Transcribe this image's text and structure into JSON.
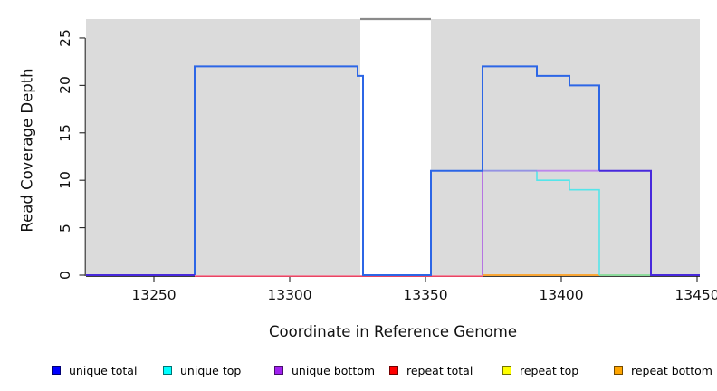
{
  "axes": {
    "x_label": "Coordinate in Reference Genome",
    "y_label": "Read Coverage Depth"
  },
  "chart_data": {
    "type": "line",
    "step": true,
    "title": "",
    "xlabel": "Coordinate in Reference Genome",
    "ylabel": "Read Coverage Depth",
    "x_domain": [
      13225,
      13451
    ],
    "y_domain": [
      0,
      27
    ],
    "x_ticks": [
      13250,
      13300,
      13350,
      13400,
      13450
    ],
    "y_ticks": [
      0,
      5,
      10,
      15,
      20,
      25
    ],
    "grid": false,
    "panel_bg": "#DBDBDB",
    "masked_region": {
      "start": 13326,
      "end": 13352,
      "fill": "#FFFFFF",
      "coverage_value": 27,
      "line_color": "#8A8A8A"
    },
    "series": [
      {
        "name": "unique total",
        "color": "#0000FF",
        "points": [
          [
            13225,
            0
          ],
          [
            13265,
            0
          ],
          [
            13265,
            22
          ],
          [
            13325,
            22
          ],
          [
            13325,
            21
          ],
          [
            13327,
            21
          ],
          [
            13327,
            0
          ],
          [
            13352,
            0
          ],
          [
            13352,
            11
          ],
          [
            13371,
            11
          ],
          [
            13371,
            22
          ],
          [
            13391,
            22
          ],
          [
            13391,
            21
          ],
          [
            13403,
            21
          ],
          [
            13403,
            20
          ],
          [
            13414,
            20
          ],
          [
            13414,
            11
          ],
          [
            13433,
            11
          ],
          [
            13433,
            0
          ],
          [
            13451,
            0
          ]
        ]
      },
      {
        "name": "unique top",
        "color": "#00FFFF",
        "points": [
          [
            13371,
            11
          ],
          [
            13391,
            11
          ],
          [
            13391,
            10
          ],
          [
            13403,
            10
          ],
          [
            13403,
            9
          ],
          [
            13414,
            9
          ],
          [
            13414,
            0
          ],
          [
            13433,
            0
          ]
        ]
      },
      {
        "name": "unique bottom",
        "color": "#A020F0",
        "points": [
          [
            13371,
            0
          ],
          [
            13371,
            11
          ],
          [
            13433,
            11
          ],
          [
            13433,
            0
          ],
          [
            13451,
            0
          ]
        ]
      },
      {
        "name": "repeat total",
        "color": "#FF0000",
        "points": [
          [
            13265,
            0
          ],
          [
            13371,
            0
          ]
        ]
      },
      {
        "name": "repeat top",
        "color": "#FFFF00",
        "points": [
          [
            13414,
            0
          ],
          [
            13433,
            0
          ]
        ]
      },
      {
        "name": "repeat bottom",
        "color": "#FFA500",
        "points": [
          [
            13371,
            0
          ],
          [
            13414,
            0
          ]
        ]
      }
    ],
    "render_segments": [
      {
        "name": "repeat-total-baseline",
        "color": "#E84563",
        "width": 1.6,
        "dy": 1.2,
        "points": [
          [
            13265,
            0
          ],
          [
            13371,
            0
          ]
        ]
      },
      {
        "name": "repeat-bottom-baseline",
        "color": "#FFA021",
        "width": 1.8,
        "points": [
          [
            13371,
            0
          ],
          [
            13414,
            0
          ]
        ]
      },
      {
        "name": "top-blend-baseline",
        "color": "#84DC96",
        "width": 1.8,
        "points": [
          [
            13414,
            0
          ],
          [
            13433,
            0
          ]
        ]
      },
      {
        "name": "unique-top-steps",
        "color": "#55E5EA",
        "width": 1.6,
        "points": [
          [
            13371,
            11
          ],
          [
            13391,
            11
          ],
          [
            13391,
            10
          ],
          [
            13403,
            10
          ],
          [
            13403,
            9
          ],
          [
            13414,
            9
          ],
          [
            13414,
            0
          ]
        ]
      },
      {
        "name": "unique-bottom-rise",
        "color": "#AC5BE4",
        "width": 1.6,
        "points": [
          [
            13371,
            0
          ],
          [
            13371,
            11
          ]
        ]
      },
      {
        "name": "unique-bottom-over-top",
        "color": "#9592E2",
        "width": 1.8,
        "points": [
          [
            13371,
            11
          ],
          [
            13391,
            11
          ]
        ]
      },
      {
        "name": "unique-bottom-plateau",
        "color": "#BC87EC",
        "width": 1.8,
        "points": [
          [
            13391,
            11
          ],
          [
            13414,
            11
          ]
        ]
      },
      {
        "name": "unique-total-main",
        "color": "#2C66E6",
        "width": 2,
        "points": [
          [
            13265,
            0
          ],
          [
            13265,
            22
          ],
          [
            13325,
            22
          ],
          [
            13325,
            21
          ],
          [
            13327,
            21
          ],
          [
            13327,
            0
          ],
          [
            13352,
            0
          ],
          [
            13352,
            11
          ],
          [
            13371,
            11
          ],
          [
            13371,
            22
          ],
          [
            13391,
            22
          ],
          [
            13391,
            21
          ],
          [
            13403,
            21
          ],
          [
            13403,
            20
          ],
          [
            13414,
            20
          ],
          [
            13414,
            11
          ]
        ]
      },
      {
        "name": "total-bottom-blend-left",
        "color": "#4829DC",
        "width": 2,
        "points": [
          [
            13225,
            0
          ],
          [
            13265,
            0
          ]
        ]
      },
      {
        "name": "total-bottom-blend-right",
        "color": "#4829DC",
        "width": 2,
        "points": [
          [
            13414,
            11
          ],
          [
            13433,
            11
          ],
          [
            13433,
            0
          ],
          [
            13451,
            0
          ]
        ]
      }
    ]
  },
  "legend": {
    "items": [
      {
        "label": "unique total",
        "color": "#0000FF"
      },
      {
        "label": "unique top",
        "color": "#00FFFF"
      },
      {
        "label": "unique bottom",
        "color": "#A020F0"
      },
      {
        "label": "repeat total",
        "color": "#FF0000"
      },
      {
        "label": "repeat top",
        "color": "#FFFF00"
      },
      {
        "label": "repeat bottom",
        "color": "#FFA500"
      }
    ]
  }
}
